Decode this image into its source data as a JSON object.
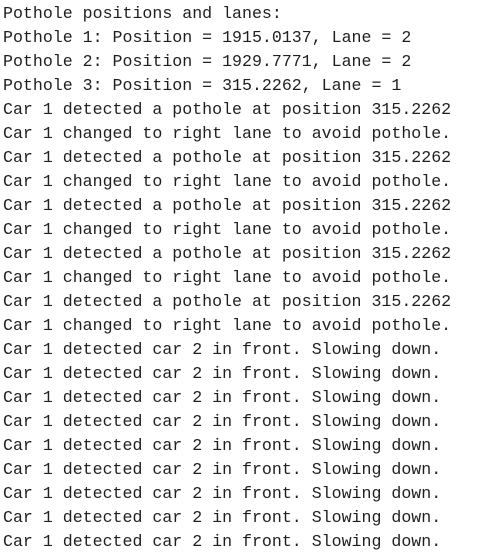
{
  "console": {
    "lines": [
      "Pothole positions and lanes:",
      "Pothole 1: Position = 1915.0137, Lane = 2",
      "Pothole 2: Position = 1929.7771, Lane = 2",
      "Pothole 3: Position = 315.2262, Lane = 1",
      "Car 1 detected a pothole at position 315.2262",
      "Car 1 changed to right lane to avoid pothole.",
      "Car 1 detected a pothole at position 315.2262",
      "Car 1 changed to right lane to avoid pothole.",
      "Car 1 detected a pothole at position 315.2262",
      "Car 1 changed to right lane to avoid pothole.",
      "Car 1 detected a pothole at position 315.2262",
      "Car 1 changed to right lane to avoid pothole.",
      "Car 1 detected a pothole at position 315.2262",
      "Car 1 changed to right lane to avoid pothole.",
      "Car 1 detected car 2 in front. Slowing down.",
      "Car 1 detected car 2 in front. Slowing down.",
      "Car 1 detected car 2 in front. Slowing down.",
      "Car 1 detected car 2 in front. Slowing down.",
      "Car 1 detected car 2 in front. Slowing down.",
      "Car 1 detected car 2 in front. Slowing down.",
      "Car 1 detected car 2 in front. Slowing down.",
      "Car 1 detected car 2 in front. Slowing down.",
      "Car 1 detected car 2 in front. Slowing down."
    ]
  }
}
